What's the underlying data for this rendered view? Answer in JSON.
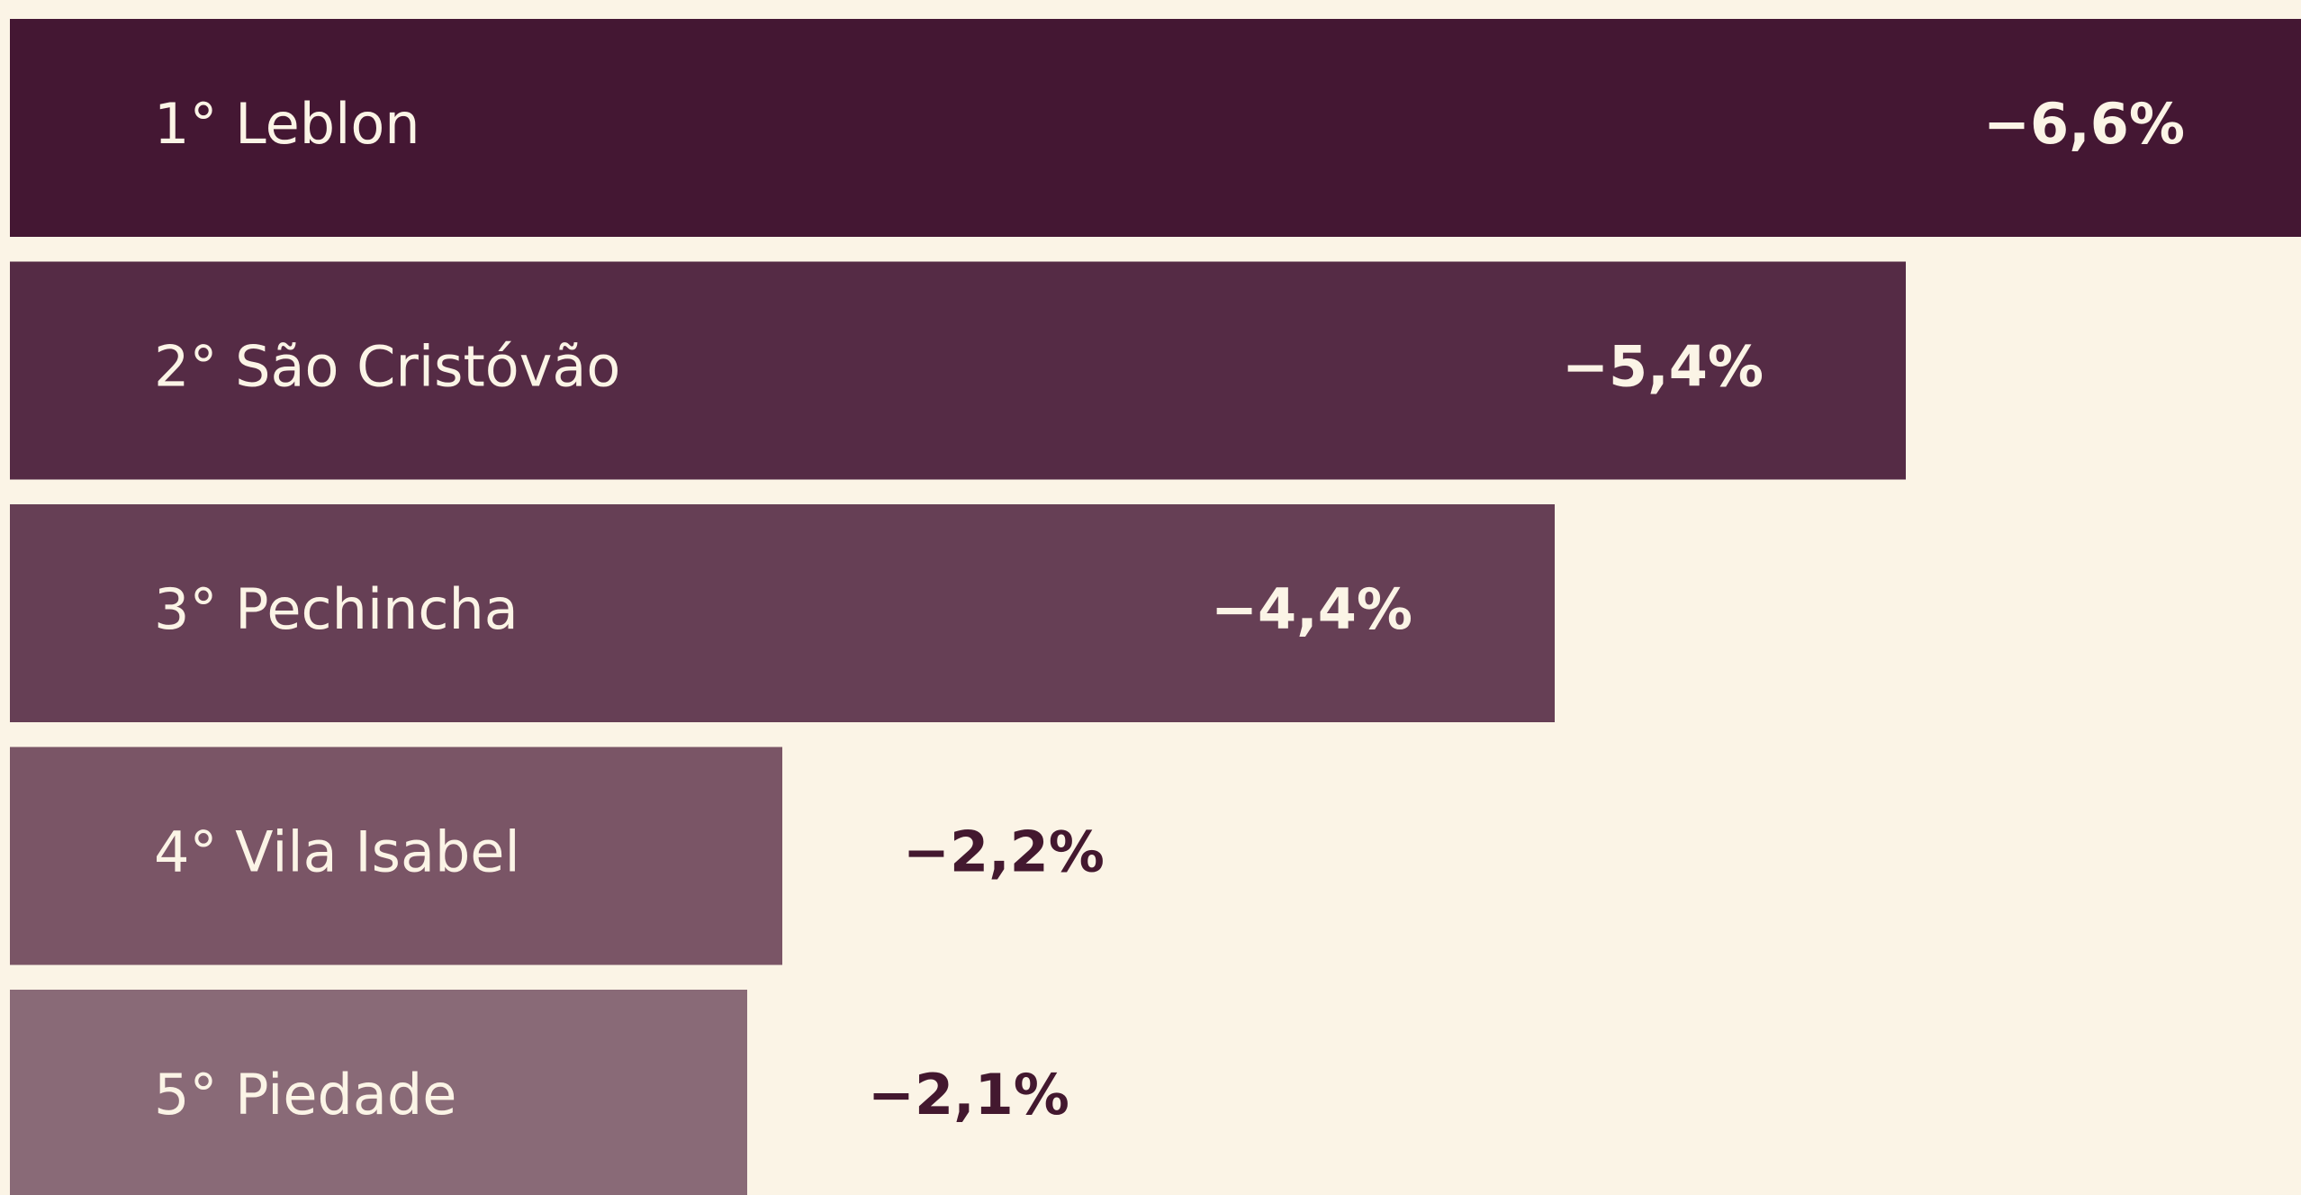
{
  "chart_data": {
    "type": "bar",
    "orientation": "horizontal",
    "categories": [
      "1° Leblon",
      "2° São Cristóvão",
      "3° Pechincha",
      "4° Vila Isabel",
      "5° Piedade"
    ],
    "values": [
      -6.6,
      -5.4,
      -4.4,
      -2.2,
      -2.1
    ],
    "value_labels": [
      "−6,6%",
      "−5,4%",
      "−4,4%",
      "−2,2%",
      "−2,1%"
    ],
    "colors": [
      "#441733",
      "#552b45",
      "#663f55",
      "#7a5566",
      "#896a77"
    ]
  }
}
